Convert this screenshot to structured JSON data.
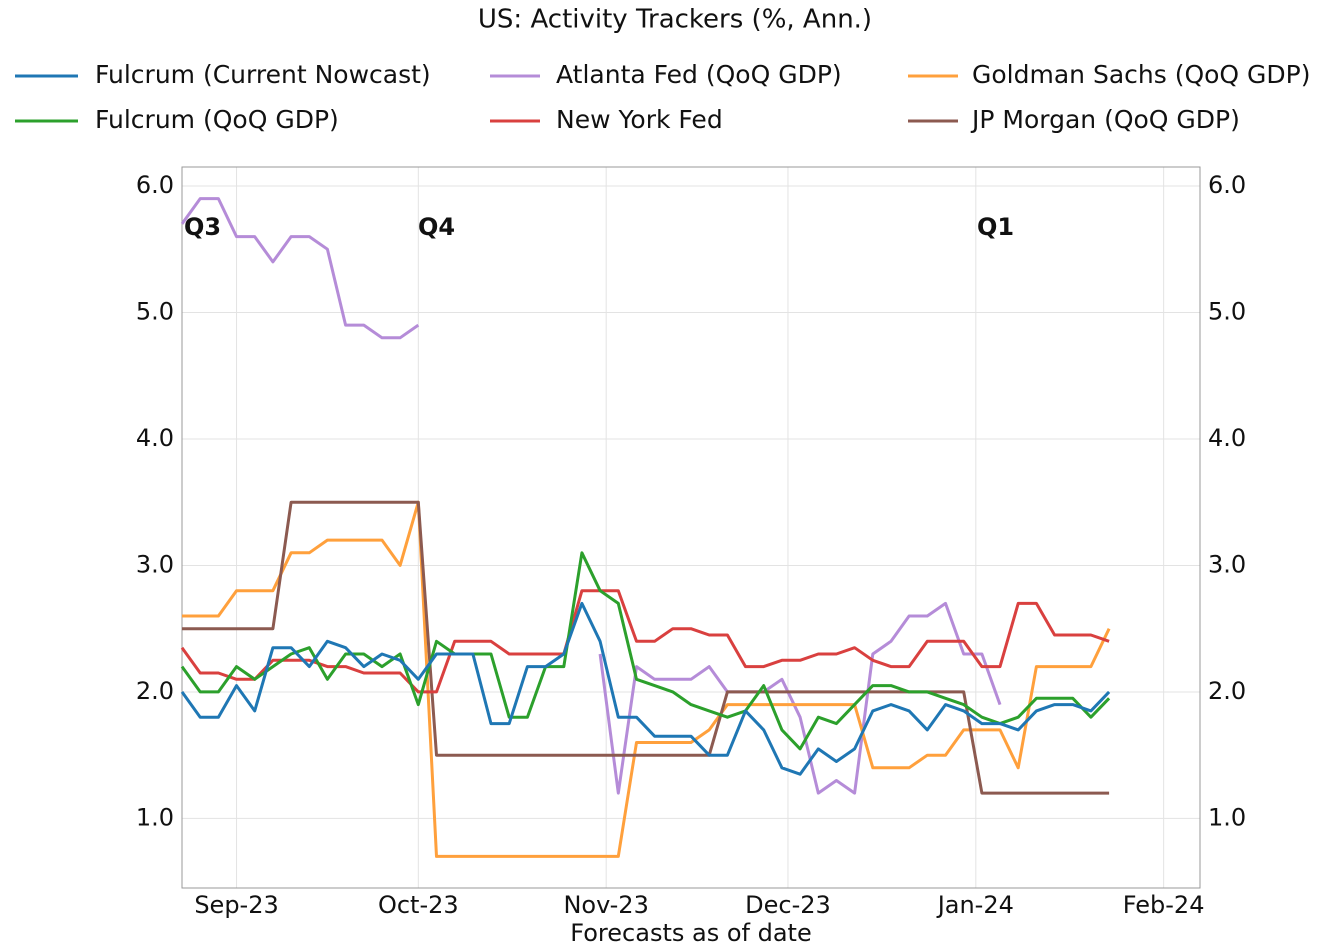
{
  "chart_data": {
    "type": "line",
    "title": "US: Activity Trackers (%, Ann.)",
    "x_label": "Forecasts as of date",
    "annotations": [
      "Q3",
      "Q4",
      "Q1"
    ],
    "x": [
      2,
      5,
      8,
      11,
      14,
      17,
      20,
      23,
      26,
      29,
      32,
      35,
      38,
      41,
      44,
      47,
      50,
      53,
      56,
      59,
      62,
      65,
      68,
      71,
      74,
      77,
      80,
      83,
      86,
      89,
      92,
      95,
      98,
      101,
      104,
      107,
      110,
      113,
      116,
      119,
      122,
      125,
      128,
      131,
      134,
      137,
      140,
      143,
      146,
      149,
      152,
      155
    ],
    "xlim": [
      2,
      170
    ],
    "xticks": [
      {
        "value": 11,
        "label": "Sep-23"
      },
      {
        "value": 41,
        "label": "Oct-23"
      },
      {
        "value": 72,
        "label": "Nov-23"
      },
      {
        "value": 102,
        "label": "Dec-23"
      },
      {
        "value": 133,
        "label": "Jan-24"
      },
      {
        "value": 164,
        "label": "Feb-24"
      }
    ],
    "ylim": [
      0.45,
      6.15
    ],
    "yticks": [
      {
        "value": 1,
        "label": "1.0"
      },
      {
        "value": 2,
        "label": "2.0"
      },
      {
        "value": 3,
        "label": "3.0"
      },
      {
        "value": 4,
        "label": "4.0"
      },
      {
        "value": 5,
        "label": "5.0"
      },
      {
        "value": 6,
        "label": "6.0"
      }
    ],
    "grid": true,
    "series": [
      {
        "name": "Fulcrum (Current Nowcast)",
        "color": "#1f77b4",
        "values": [
          2.0,
          1.8,
          1.8,
          2.05,
          1.85,
          2.35,
          2.35,
          2.2,
          2.4,
          2.35,
          2.2,
          2.3,
          2.25,
          2.1,
          2.3,
          2.3,
          2.3,
          1.75,
          1.75,
          2.2,
          2.2,
          2.3,
          2.7,
          2.4,
          1.8,
          1.8,
          1.65,
          1.65,
          1.65,
          1.5,
          1.5,
          1.85,
          1.7,
          1.4,
          1.35,
          1.55,
          1.45,
          1.55,
          1.85,
          1.9,
          1.85,
          1.7,
          1.9,
          1.85,
          1.75,
          1.75,
          1.7,
          1.85,
          1.9,
          1.9,
          1.85,
          2.0
        ]
      },
      {
        "name": "Atlanta Fed (QoQ GDP)",
        "color": "#b58cd8",
        "values": [
          5.7,
          5.9,
          5.9,
          5.6,
          5.6,
          5.4,
          5.6,
          5.6,
          5.5,
          4.9,
          4.9,
          4.8,
          4.8,
          4.9,
          null,
          null,
          null,
          null,
          null,
          null,
          null,
          null,
          null,
          2.3,
          1.2,
          2.2,
          2.1,
          2.1,
          2.1,
          2.2,
          2.0,
          2.0,
          2.0,
          2.1,
          1.8,
          1.2,
          1.3,
          1.2,
          2.3,
          2.4,
          2.6,
          2.6,
          2.7,
          2.3,
          2.3,
          1.9,
          null,
          null,
          null,
          null,
          null,
          null
        ]
      },
      {
        "name": "Goldman Sachs (QoQ GDP)",
        "color": "#ffa03c",
        "values": [
          2.6,
          2.6,
          2.6,
          2.8,
          2.8,
          2.8,
          3.1,
          3.1,
          3.2,
          3.2,
          3.2,
          3.2,
          3.0,
          3.5,
          0.7,
          0.7,
          0.7,
          0.7,
          0.7,
          0.7,
          0.7,
          0.7,
          0.7,
          0.7,
          0.7,
          1.6,
          1.6,
          1.6,
          1.6,
          1.7,
          1.9,
          1.9,
          1.9,
          1.9,
          1.9,
          1.9,
          1.9,
          1.9,
          1.4,
          1.4,
          1.4,
          1.5,
          1.5,
          1.7,
          1.7,
          1.7,
          1.4,
          2.2,
          2.2,
          2.2,
          2.2,
          2.5
        ]
      },
      {
        "name": "Fulcrum (QoQ GDP)",
        "color": "#2ca02c",
        "values": [
          2.2,
          2.0,
          2.0,
          2.2,
          2.1,
          2.2,
          2.3,
          2.35,
          2.1,
          2.3,
          2.3,
          2.2,
          2.3,
          1.9,
          2.4,
          2.3,
          2.3,
          2.3,
          1.8,
          1.8,
          2.2,
          2.2,
          3.1,
          2.8,
          2.7,
          2.1,
          2.05,
          2.0,
          1.9,
          1.85,
          1.8,
          1.85,
          2.05,
          1.7,
          1.55,
          1.8,
          1.75,
          1.9,
          2.05,
          2.05,
          2.0,
          2.0,
          1.95,
          1.9,
          1.8,
          1.75,
          1.8,
          1.95,
          1.95,
          1.95,
          1.8,
          1.95
        ]
      },
      {
        "name": "New York Fed",
        "color": "#d9403f",
        "values": [
          2.35,
          2.15,
          2.15,
          2.1,
          2.1,
          2.25,
          2.25,
          2.25,
          2.2,
          2.2,
          2.15,
          2.15,
          2.15,
          2.0,
          2.0,
          2.4,
          2.4,
          2.4,
          2.3,
          2.3,
          2.3,
          2.3,
          2.8,
          2.8,
          2.8,
          2.4,
          2.4,
          2.5,
          2.5,
          2.45,
          2.45,
          2.2,
          2.2,
          2.25,
          2.25,
          2.3,
          2.3,
          2.35,
          2.25,
          2.2,
          2.2,
          2.4,
          2.4,
          2.4,
          2.2,
          2.2,
          2.7,
          2.7,
          2.45,
          2.45,
          2.45,
          2.4
        ]
      },
      {
        "name": "JP Morgan (QoQ GDP)",
        "color": "#8c5a50",
        "values": [
          2.5,
          2.5,
          2.5,
          2.5,
          2.5,
          2.5,
          3.5,
          3.5,
          3.5,
          3.5,
          3.5,
          3.5,
          3.5,
          3.5,
          1.5,
          1.5,
          1.5,
          1.5,
          1.5,
          1.5,
          1.5,
          1.5,
          1.5,
          1.5,
          1.5,
          1.5,
          1.5,
          1.5,
          1.5,
          1.5,
          2.0,
          2.0,
          2.0,
          2.0,
          2.0,
          2.0,
          2.0,
          2.0,
          2.0,
          2.0,
          2.0,
          2.0,
          2.0,
          2.0,
          1.2,
          1.2,
          1.2,
          1.2,
          1.2,
          1.2,
          1.2,
          1.2
        ]
      }
    ]
  }
}
